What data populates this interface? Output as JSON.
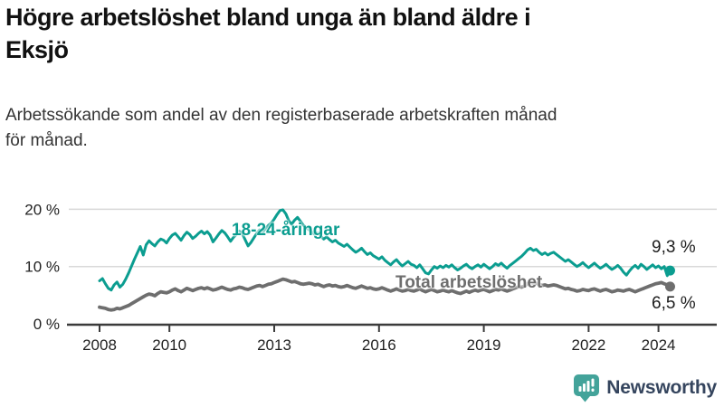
{
  "header": {
    "title": "Högre arbetslöshet bland unga än bland äldre i\nEksjö",
    "subtitle": "Arbetssökande som andel av den registerbaserade arbetskraften månad\nför månad."
  },
  "chart_data": {
    "type": "line",
    "title": "Högre arbetslöshet bland unga än bland äldre i Eksjö",
    "x_unit": "month",
    "x_start": "2008-01",
    "x_end": "2024-05",
    "xticks": [
      2008,
      2010,
      2013,
      2016,
      2019,
      2022,
      2024
    ],
    "yticks": [
      {
        "value": 0,
        "label": "0 %"
      },
      {
        "value": 10,
        "label": "10 %"
      },
      {
        "value": 20,
        "label": "20 %"
      }
    ],
    "ylim": [
      0,
      23
    ],
    "grid": "horizontal",
    "colors": {
      "grid": "#d9d9d9",
      "axis": "#3b3b3b",
      "tick_text": "#222222"
    },
    "series": [
      {
        "name": "18-24-åringar",
        "color": "#0b9d90",
        "end_label": "9,3 %",
        "end_value": 9.3,
        "values": [
          7.5,
          7.9,
          7.0,
          6.2,
          5.9,
          6.8,
          7.3,
          6.4,
          6.9,
          7.8,
          8.9,
          10.1,
          11.3,
          12.4,
          13.5,
          12.0,
          13.8,
          14.5,
          14.0,
          13.6,
          14.3,
          14.8,
          14.6,
          14.1,
          14.9,
          15.5,
          15.8,
          15.2,
          14.6,
          15.4,
          16.0,
          15.6,
          14.9,
          15.3,
          15.8,
          16.2,
          15.7,
          16.1,
          15.5,
          14.3,
          15.0,
          15.7,
          16.3,
          15.9,
          15.2,
          14.4,
          15.1,
          15.6,
          16.2,
          15.8,
          14.7,
          13.6,
          14.2,
          15.0,
          15.8,
          16.4,
          16.0,
          16.6,
          17.2,
          17.6,
          18.3,
          19.1,
          19.8,
          19.9,
          19.2,
          18.0,
          17.4,
          18.1,
          18.6,
          17.9,
          17.2,
          16.8,
          16.4,
          16.0,
          15.6,
          15.9,
          15.3,
          14.8,
          15.2,
          14.7,
          14.3,
          14.6,
          14.1,
          13.8,
          13.5,
          13.9,
          13.4,
          12.9,
          12.5,
          12.8,
          13.2,
          12.6,
          12.1,
          12.4,
          11.9,
          11.6,
          11.3,
          11.7,
          11.1,
          10.7,
          10.3,
          10.8,
          11.2,
          10.6,
          10.1,
          10.5,
          10.9,
          10.4,
          10.2,
          9.8,
          10.3,
          9.6,
          8.9,
          8.7,
          9.4,
          10.0,
          9.7,
          10.1,
          9.8,
          10.2,
          9.9,
          10.3,
          9.8,
          9.4,
          9.7,
          10.1,
          10.4,
          9.9,
          9.6,
          10.0,
          10.3,
          9.9,
          10.4,
          10.0,
          9.6,
          10.0,
          10.5,
          10.2,
          10.6,
          10.1,
          9.7,
          10.2,
          10.6,
          11.0,
          11.4,
          11.8,
          12.3,
          12.9,
          13.2,
          12.8,
          13.0,
          12.5,
          12.1,
          12.4,
          12.0,
          12.3,
          12.5,
          12.1,
          11.7,
          11.3,
          10.9,
          11.2,
          10.8,
          10.4,
          10.0,
          10.3,
          10.7,
          10.2,
          9.8,
          10.2,
          10.6,
          10.1,
          9.7,
          10.0,
          10.4,
          9.9,
          9.5,
          9.8,
          10.2,
          9.7,
          9.0,
          8.5,
          9.2,
          9.8,
          10.2,
          9.7,
          10.4,
          10.0,
          9.5,
          9.9,
          10.3,
          9.8,
          10.1,
          9.6,
          10.0,
          8.4,
          9.3
        ]
      },
      {
        "name": "Total arbetslöshet",
        "color": "#6e6e6e",
        "end_label": "6,5 %",
        "end_value": 6.5,
        "values": [
          2.9,
          2.8,
          2.7,
          2.5,
          2.4,
          2.5,
          2.7,
          2.6,
          2.8,
          3.0,
          3.2,
          3.5,
          3.8,
          4.1,
          4.4,
          4.7,
          5.0,
          5.2,
          5.1,
          4.9,
          5.3,
          5.6,
          5.5,
          5.4,
          5.6,
          5.9,
          6.1,
          5.8,
          5.6,
          5.9,
          6.2,
          6.0,
          5.8,
          6.0,
          6.2,
          6.3,
          6.1,
          6.3,
          6.1,
          5.9,
          6.0,
          6.2,
          6.4,
          6.2,
          6.0,
          5.9,
          6.1,
          6.2,
          6.4,
          6.3,
          6.1,
          6.0,
          6.2,
          6.4,
          6.6,
          6.7,
          6.5,
          6.7,
          6.9,
          7.0,
          7.2,
          7.4,
          7.6,
          7.8,
          7.7,
          7.5,
          7.3,
          7.4,
          7.2,
          7.0,
          6.9,
          7.0,
          7.1,
          7.0,
          6.8,
          6.9,
          6.7,
          6.5,
          6.7,
          6.8,
          6.6,
          6.7,
          6.5,
          6.4,
          6.5,
          6.7,
          6.5,
          6.3,
          6.2,
          6.4,
          6.6,
          6.4,
          6.2,
          6.3,
          6.1,
          6.0,
          6.1,
          6.3,
          6.1,
          5.9,
          5.7,
          5.9,
          6.1,
          5.9,
          5.7,
          5.8,
          6.0,
          5.8,
          5.7,
          5.9,
          6.1,
          5.8,
          5.6,
          5.8,
          6.0,
          5.8,
          5.6,
          5.7,
          5.9,
          5.7,
          5.6,
          5.8,
          5.6,
          5.4,
          5.3,
          5.5,
          5.7,
          5.5,
          5.7,
          5.9,
          5.7,
          5.9,
          6.0,
          5.8,
          5.6,
          5.8,
          6.0,
          5.9,
          6.1,
          5.9,
          5.7,
          5.9,
          6.1,
          6.3,
          6.5,
          6.4,
          6.6,
          7.0,
          7.2,
          7.0,
          7.1,
          6.9,
          6.7,
          6.8,
          6.6,
          6.7,
          6.8,
          6.7,
          6.5,
          6.3,
          6.1,
          6.2,
          6.0,
          5.9,
          5.7,
          5.8,
          6.0,
          5.9,
          5.8,
          6.0,
          6.1,
          5.9,
          5.7,
          5.9,
          6.0,
          5.8,
          5.6,
          5.7,
          5.9,
          5.8,
          5.7,
          5.9,
          6.0,
          5.8,
          5.6,
          5.8,
          6.0,
          6.2,
          6.4,
          6.6,
          6.8,
          7.0,
          7.1,
          7.2,
          7.0,
          6.8,
          6.5
        ]
      }
    ]
  },
  "footer": {
    "brand": "Newsworthy",
    "brand_color": "#35455e",
    "logo_color": "#43a39a"
  }
}
